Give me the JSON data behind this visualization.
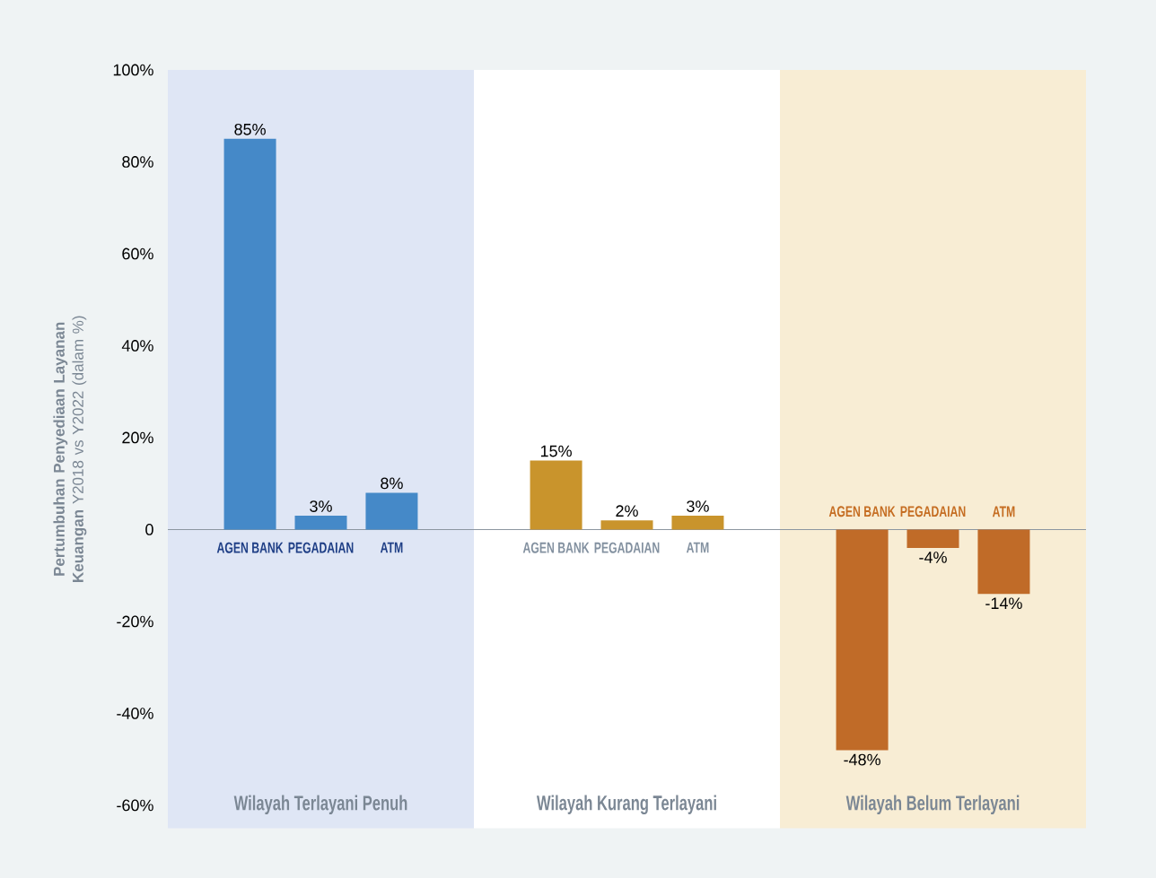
{
  "chart_data": [
    {
      "type": "bar",
      "categories": [
        "AGEN BANK",
        "PEGADAIAN",
        "ATM"
      ],
      "values": [
        85,
        3,
        8
      ],
      "value_labels": [
        "85%",
        "3%",
        "8%"
      ],
      "color": "#4589c8",
      "xlabel": "Wilayah Terlayani Penuh",
      "ylabel": "**Pertumbuhan Penyediaan Layanan Keuangan** Y2018 vs Y2022 (dalam %)",
      "ylim": [
        -65,
        100
      ],
      "yticks": [
        {
          "value": 100,
          "label": "100%"
        },
        {
          "value": 80,
          "label": "80%"
        },
        {
          "value": 60,
          "label": "60%"
        },
        {
          "value": 40,
          "label": "40%"
        },
        {
          "value": 20,
          "label": "20%"
        },
        0,
        {
          "value": -20,
          "label": "-20%"
        },
        {
          "value": -40,
          "label": "-40%"
        },
        {
          "value": -60,
          "label": "-60%"
        }
      ],
      "bands": [
        {
          "axis": "y",
          "from": -65,
          "to": 100,
          "color": "#dfe6f5"
        }
      ]
    },
    {
      "type": "bar",
      "categories": [
        "AGEN BANK",
        "PEGADAIAN",
        "ATM"
      ],
      "values": [
        15,
        2,
        3
      ],
      "value_labels": [
        "15%",
        "2%",
        "3%"
      ],
      "color": "#c9942c",
      "xlabel": "Wilayah Kurang Terlayani",
      "ylim": [
        -65,
        100
      ],
      "tick_labels": "x",
      "bands": [
        {
          "axis": "y",
          "from": -65,
          "to": 100,
          "color": "#ffffff"
        }
      ]
    },
    {
      "type": "bar",
      "categories": [
        "AGEN BANK",
        "PEGADAIAN",
        "ATM"
      ],
      "values": [
        -48,
        -4,
        -14
      ],
      "value_labels": [
        "-48%",
        "-4%",
        "-14%"
      ],
      "color": "#c06b28",
      "xlabel": "Wilayah Belum Terlayani",
      "ylim": [
        -65,
        100
      ],
      "tick_labels": "x",
      "bands": [
        {
          "axis": "y",
          "from": -65,
          "to": 100,
          "color": "#f8edd4"
        }
      ]
    }
  ]
}
